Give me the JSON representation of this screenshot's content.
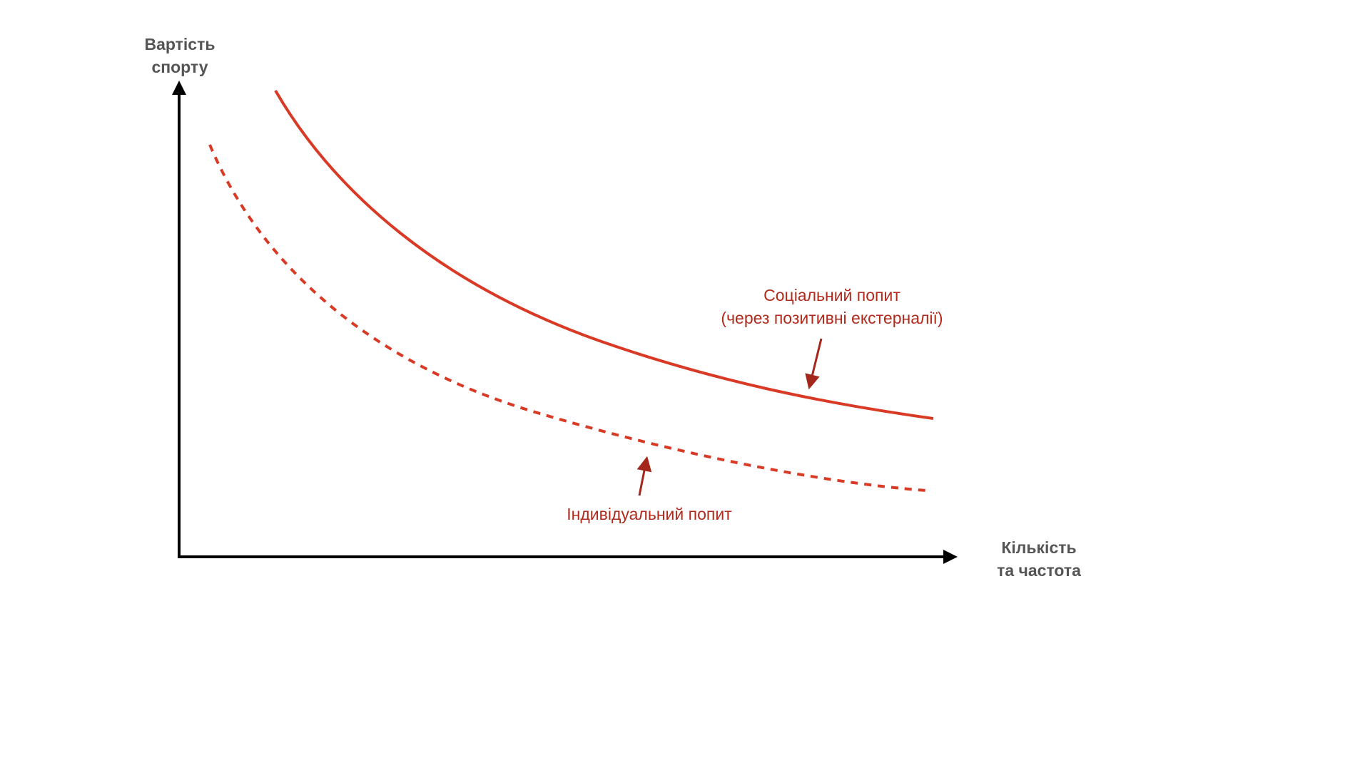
{
  "axes": {
    "y_label": [
      "Вартість",
      "спорту"
    ],
    "x_label": [
      "Кількість",
      "та частота"
    ]
  },
  "curves": {
    "social_label": [
      "Соціальний попит",
      "(через позитивні екстерналії)"
    ],
    "individual_label": "Індивідуальний попит"
  },
  "colors": {
    "axis": "#000000",
    "curve": "#d93a25",
    "annotation_text": "#b22a1c",
    "arrow": "#a3281b",
    "axis_text": "#555555"
  }
}
